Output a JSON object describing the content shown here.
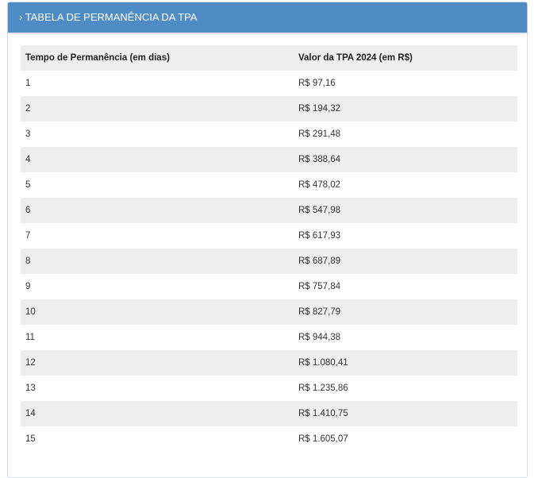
{
  "panel": {
    "title": "› TABELA DE PERMANÊNCIA DA TPA"
  },
  "table": {
    "columns": [
      "Tempo de Permanência (em dias)",
      "Valor da TPA 2024 (em R$)"
    ],
    "rows": [
      [
        "1",
        "R$ 97,16"
      ],
      [
        "2",
        "R$ 194,32"
      ],
      [
        "3",
        "R$ 291,48"
      ],
      [
        "4",
        "R$ 388,64"
      ],
      [
        "5",
        "R$ 478,02"
      ],
      [
        "6",
        "R$ 547,98"
      ],
      [
        "7",
        "R$ 617,93"
      ],
      [
        "8",
        "R$ 687,89"
      ],
      [
        "9",
        "R$ 757,84"
      ],
      [
        "10",
        "R$ 827,79"
      ],
      [
        "11",
        "R$ 944,38"
      ],
      [
        "12",
        "R$ 1.080,41"
      ],
      [
        "13",
        "R$ 1.235,86"
      ],
      [
        "14",
        "R$ 1.410,75"
      ],
      [
        "15",
        "R$ 1.605,07"
      ]
    ]
  }
}
